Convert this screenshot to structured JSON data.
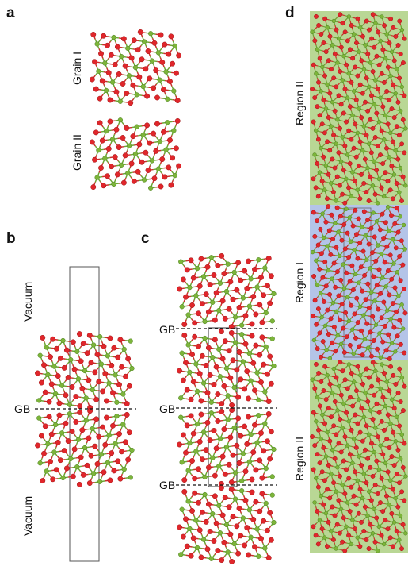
{
  "panels": {
    "a": {
      "letter": "a",
      "grain1": "Grain I",
      "grain2": "Grain II"
    },
    "b": {
      "letter": "b",
      "vacuum_top": "Vacuum",
      "vacuum_bottom": "Vacuum",
      "gb": "GB"
    },
    "c": {
      "letter": "c",
      "gb": "GB"
    },
    "d": {
      "letter": "d",
      "region_top": "Region II",
      "region_mid": "Region I",
      "region_bottom": "Region II"
    }
  },
  "colors": {
    "atom_red": "#e0262b",
    "atom_green": "#7cb53a",
    "bond_red": "#c9302c",
    "bond_green": "#6aa532",
    "region2_bg": "#b9d795",
    "region1_bg": "#b4c4e8",
    "frame": "#555555",
    "dash": "#111111"
  }
}
